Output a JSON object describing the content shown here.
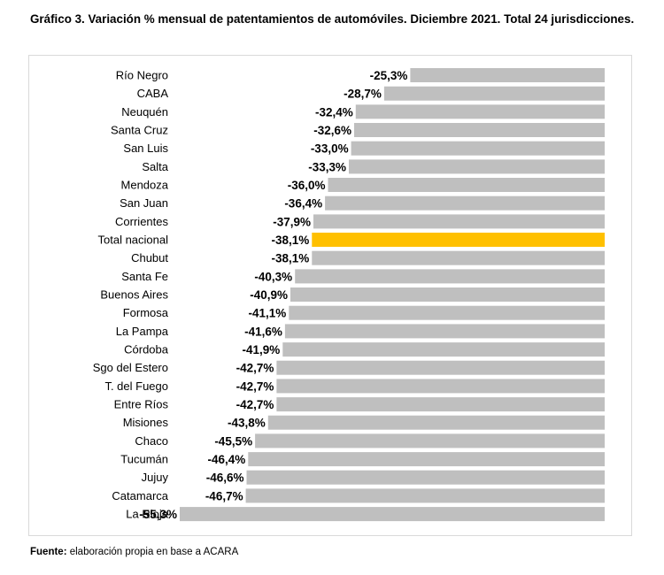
{
  "title": "Gráfico 3. Variación % mensual de patentamientos de automóviles. Diciembre 2021. Total 24 jurisdicciones.",
  "source": {
    "label": "Fuente:",
    "text": "elaboración propia en base a ACARA"
  },
  "colors": {
    "bar": "#bfbfbf",
    "highlight": "#ffc000"
  },
  "chart_data": {
    "type": "bar",
    "orientation": "horizontal",
    "title": "Variación % mensual de patentamientos de automóviles. Diciembre 2021",
    "xlabel": "",
    "ylabel": "",
    "xlim": [
      -60,
      0
    ],
    "highlight_category": "Total nacional",
    "categories": [
      "Río Negro",
      "CABA",
      "Neuquén",
      "Santa Cruz",
      "San Luis",
      "Salta",
      "Mendoza",
      "San Juan",
      "Corrientes",
      "Total nacional",
      "Chubut",
      "Santa Fe",
      "Buenos Aires",
      "Formosa",
      "La Pampa",
      "Córdoba",
      "Sgo del Estero",
      "T. del Fuego",
      "Entre Ríos",
      "Misiones",
      "Chaco",
      "Tucumán",
      "Jujuy",
      "Catamarca",
      "La Rioja"
    ],
    "values": [
      -25.3,
      -28.7,
      -32.4,
      -32.6,
      -33.0,
      -33.3,
      -36.0,
      -36.4,
      -37.9,
      -38.1,
      -38.1,
      -40.3,
      -40.9,
      -41.1,
      -41.6,
      -41.9,
      -42.7,
      -42.7,
      -42.7,
      -43.8,
      -45.5,
      -46.4,
      -46.6,
      -46.7,
      -55.3
    ],
    "value_labels": [
      "-25,3%",
      "-28,7%",
      "-32,4%",
      "-32,6%",
      "-33,0%",
      "-33,3%",
      "-36,0%",
      "-36,4%",
      "-37,9%",
      "-38,1%",
      "-38,1%",
      "-40,3%",
      "-40,9%",
      "-41,1%",
      "-41,6%",
      "-41,9%",
      "-42,7%",
      "-42,7%",
      "-42,7%",
      "-43,8%",
      "-45,5%",
      "-46,4%",
      "-46,6%",
      "-46,7%",
      "-55,3%"
    ]
  }
}
